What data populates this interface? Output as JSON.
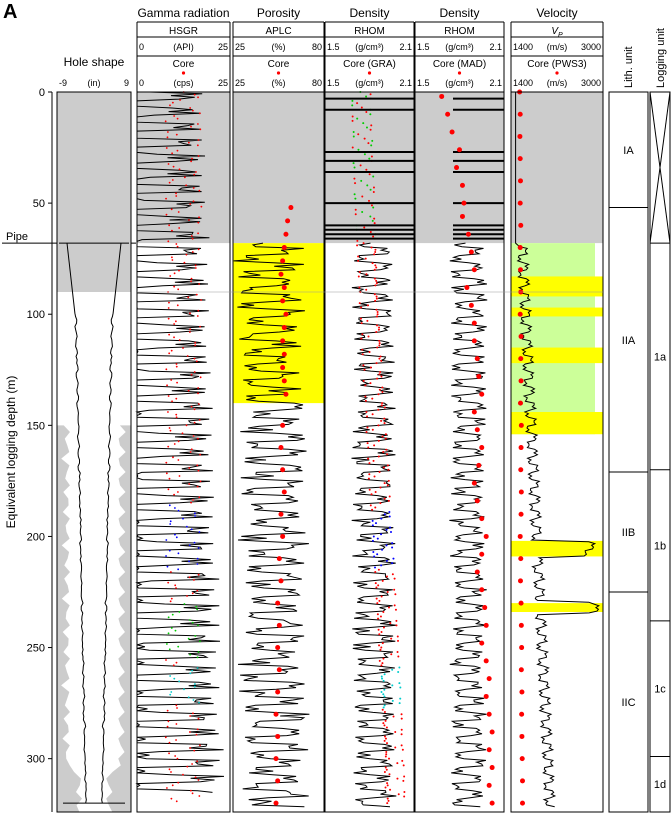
{
  "figure_label": "A",
  "chart_data": {
    "type": "line",
    "ylabel": "Equivalent logging depth (m)",
    "ylim": [
      0,
      324
    ],
    "yticks": [
      0,
      50,
      100,
      150,
      200,
      250,
      300
    ],
    "y_inverted": true,
    "pipe_label": "Pipe",
    "pipe_depth_m": 68,
    "lith_title": "Lith. unit",
    "log_unit_title": "Logging unit",
    "lith_units": [
      {
        "name": "IA",
        "top": 0,
        "bottom": 52
      },
      {
        "name": "IIA",
        "top": 52,
        "bottom": 171
      },
      {
        "name": "IIB",
        "top": 171,
        "bottom": 225
      },
      {
        "name": "IIC",
        "top": 225,
        "bottom": 324
      }
    ],
    "log_units": [
      {
        "name": "",
        "top": 0,
        "bottom": 68,
        "crossed": true
      },
      {
        "name": "1a",
        "top": 68,
        "bottom": 170
      },
      {
        "name": "1b",
        "top": 170,
        "bottom": 238
      },
      {
        "name": "1c",
        "top": 238,
        "bottom": 299
      },
      {
        "name": "1d",
        "top": 299,
        "bottom": 324
      }
    ],
    "tracks": [
      {
        "id": "hole",
        "title": "Hole shape",
        "subtitle": "",
        "curve_label": "",
        "curve_ticks": [
          "-9",
          "(in)",
          "9"
        ],
        "core_label": "",
        "core_ticks": []
      },
      {
        "id": "gamma",
        "title": "Gamma radiation",
        "subtitle": "HSGR",
        "curve_label": "",
        "curve_ticks": [
          "0",
          "(API)",
          "25"
        ],
        "core_label": "Core",
        "core_ticks": [
          "0",
          "(cps)",
          "25"
        ]
      },
      {
        "id": "porosity",
        "title": "Porosity",
        "subtitle": "APLC",
        "curve_label": "",
        "curve_ticks": [
          "25",
          "(%)",
          "80"
        ],
        "core_label": "Core",
        "core_ticks": [
          "25",
          "(%)",
          "80"
        ]
      },
      {
        "id": "density_gra",
        "title": "Density",
        "subtitle": "RHOM",
        "curve_label": "",
        "curve_ticks": [
          "1.5",
          "(g/cm³)",
          "2.1"
        ],
        "core_label": "Core (GRA)",
        "core_ticks": [
          "1.5",
          "(g/cm³)",
          "2.1"
        ]
      },
      {
        "id": "density_mad",
        "title": "Density",
        "subtitle": "RHOM",
        "curve_label": "",
        "curve_ticks": [
          "1.5",
          "(g/cm³)",
          "2.1"
        ],
        "core_label": "Core (MAD)",
        "core_ticks": [
          "1.5",
          "(g/cm³)",
          "2.1"
        ]
      },
      {
        "id": "velocity",
        "title": "Velocity",
        "subtitle": "VP",
        "curve_label": "",
        "curve_ticks": [
          "1400",
          "(m/s)",
          "3000"
        ],
        "core_label": "Core (PWS3)",
        "core_ticks": [
          "1400",
          "(m/s)",
          "3000"
        ]
      }
    ],
    "colors": {
      "pipe_shade": "#cccccc",
      "highlight": "#ffff00",
      "velocity_zone": "#ccff99",
      "core_points": "#ff0000",
      "gra_green": "#00cc00",
      "gra_blue": "#0000ff",
      "gra_cyan": "#00cccc"
    },
    "highlight_zones": {
      "porosity": [
        [
          68,
          140
        ]
      ],
      "velocity_green": [
        [
          68,
          154
        ]
      ],
      "velocity_yellow": [
        [
          83,
          92
        ],
        [
          97,
          101
        ],
        [
          115,
          122
        ],
        [
          144,
          154
        ],
        [
          202,
          209
        ],
        [
          230,
          234
        ]
      ]
    },
    "mad_density_points": [
      [
        2,
        1.68
      ],
      [
        10,
        1.72
      ],
      [
        18,
        1.75
      ],
      [
        26,
        1.8
      ],
      [
        34,
        1.78
      ],
      [
        42,
        1.82
      ],
      [
        50,
        1.83
      ],
      [
        56,
        1.82
      ],
      [
        64,
        1.86
      ],
      [
        72,
        1.88
      ],
      [
        80,
        1.9
      ],
      [
        88,
        1.85
      ],
      [
        96,
        1.88
      ],
      [
        104,
        1.9
      ],
      [
        112,
        1.9
      ],
      [
        120,
        1.92
      ],
      [
        128,
        1.93
      ],
      [
        136,
        1.95
      ],
      [
        144,
        1.9
      ],
      [
        152,
        1.92
      ],
      [
        160,
        1.95
      ],
      [
        168,
        1.93
      ],
      [
        176,
        1.9
      ],
      [
        184,
        1.92
      ],
      [
        192,
        1.95
      ],
      [
        200,
        1.98
      ],
      [
        208,
        1.95
      ],
      [
        216,
        1.92
      ],
      [
        224,
        1.95
      ],
      [
        232,
        1.97
      ],
      [
        240,
        1.98
      ],
      [
        248,
        1.95
      ],
      [
        256,
        1.98
      ],
      [
        264,
        2.0
      ],
      [
        272,
        1.98
      ],
      [
        280,
        2.0
      ],
      [
        288,
        2.02
      ],
      [
        296,
        2.0
      ],
      [
        304,
        2.02
      ],
      [
        312,
        2.0
      ],
      [
        320,
        2.02
      ]
    ],
    "porosity_core_points": [
      [
        52,
        60
      ],
      [
        58,
        58
      ],
      [
        64,
        57
      ],
      [
        70,
        56
      ],
      [
        76,
        55
      ],
      [
        82,
        54
      ],
      [
        88,
        56
      ],
      [
        94,
        55
      ],
      [
        100,
        57
      ],
      [
        106,
        56
      ],
      [
        112,
        55
      ],
      [
        118,
        56
      ],
      [
        124,
        55
      ],
      [
        130,
        56
      ],
      [
        136,
        57
      ],
      [
        150,
        55
      ],
      [
        160,
        54
      ],
      [
        170,
        55
      ],
      [
        180,
        56
      ],
      [
        190,
        54
      ],
      [
        200,
        55
      ],
      [
        210,
        53
      ],
      [
        220,
        54
      ],
      [
        230,
        52
      ],
      [
        240,
        53
      ],
      [
        250,
        52
      ],
      [
        260,
        53
      ],
      [
        270,
        52
      ],
      [
        280,
        51
      ],
      [
        290,
        52
      ],
      [
        300,
        51
      ],
      [
        310,
        52
      ],
      [
        320,
        51
      ]
    ],
    "velocity_core_points": [
      [
        0,
        1550
      ],
      [
        10,
        1560
      ],
      [
        20,
        1555
      ],
      [
        30,
        1560
      ],
      [
        40,
        1565
      ],
      [
        50,
        1560
      ],
      [
        60,
        1570
      ],
      [
        70,
        1560
      ],
      [
        80,
        1565
      ],
      [
        90,
        1570
      ],
      [
        100,
        1560
      ],
      [
        110,
        1575
      ],
      [
        120,
        1570
      ],
      [
        130,
        1575
      ],
      [
        140,
        1565
      ],
      [
        150,
        1580
      ],
      [
        160,
        1575
      ],
      [
        170,
        1570
      ],
      [
        180,
        1580
      ],
      [
        190,
        1575
      ],
      [
        200,
        1560
      ],
      [
        210,
        1570
      ],
      [
        220,
        1565
      ],
      [
        230,
        1575
      ],
      [
        240,
        1580
      ],
      [
        250,
        1585
      ],
      [
        260,
        1580
      ],
      [
        270,
        1590
      ],
      [
        280,
        1585
      ],
      [
        290,
        1590
      ],
      [
        300,
        1595
      ],
      [
        310,
        1600
      ],
      [
        320,
        1600
      ]
    ]
  }
}
